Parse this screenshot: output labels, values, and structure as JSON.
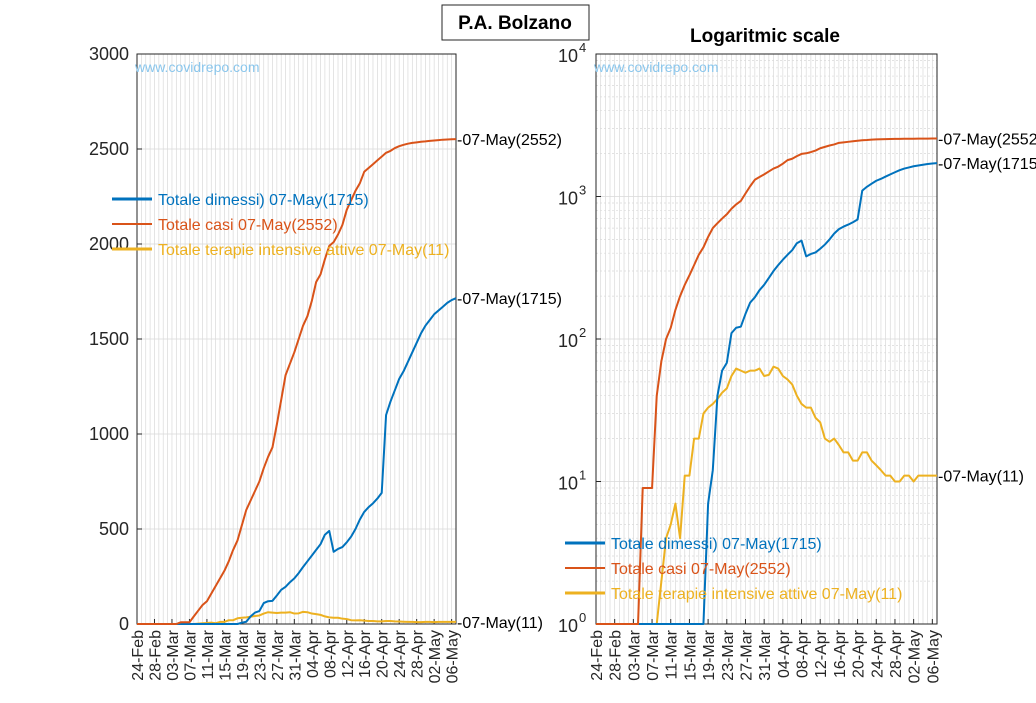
{
  "figure": {
    "main_title": "P.A. Bolzano",
    "watermark": "www.covidrepo.com"
  },
  "colors": {
    "dimessi": "#0072BD",
    "casi": "#D95319",
    "terapie": "#EDB120",
    "grid": "#d9d9d9",
    "axis": "#262626"
  },
  "chart_data": [
    {
      "type": "line",
      "title": "",
      "yscale": "linear",
      "ylim": [
        0,
        3000
      ],
      "yticks": [
        0,
        500,
        1000,
        1500,
        2000,
        2500,
        3000
      ],
      "ytick_labels": [
        "0",
        "500",
        "1000",
        "1500",
        "2000",
        "2500",
        "3000"
      ],
      "x_start": "24-Feb",
      "x_end": "07-May",
      "xtick_labels": [
        "24-Feb",
        "28-Feb",
        "03-Mar",
        "07-Mar",
        "11-Mar",
        "15-Mar",
        "19-Mar",
        "23-Mar",
        "27-Mar",
        "31-Mar",
        "04-Apr",
        "08-Apr",
        "12-Apr",
        "16-Apr",
        "20-Apr",
        "24-Apr",
        "28-Apr",
        "02-May",
        "06-May"
      ],
      "legend": {
        "position": "middle-left",
        "entries": [
          "Totale dimessi) 07-May(1715)",
          "Totale casi 07-May(2552)",
          "Totale terapie intensive attive 07-May(11)"
        ]
      },
      "end_labels": [
        "-07-May(2552)",
        "-07-May(1715)",
        "-07-May(11)"
      ],
      "series": [
        {
          "name": "Totale dimessi) 07-May(1715)",
          "key": "dimessi",
          "points": [
            [
              "24-Feb",
              0
            ],
            [
              "18-Mar",
              0
            ],
            [
              "19-Mar",
              7
            ],
            [
              "20-Mar",
              12
            ],
            [
              "21-Mar",
              40
            ],
            [
              "22-Mar",
              60
            ],
            [
              "23-Mar",
              68
            ],
            [
              "24-Mar",
              110
            ],
            [
              "25-Mar",
              120
            ],
            [
              "26-Mar",
              122
            ],
            [
              "27-Mar",
              150
            ],
            [
              "28-Mar",
              180
            ],
            [
              "29-Mar",
              196
            ],
            [
              "30-Mar",
              220
            ],
            [
              "31-Mar",
              240
            ],
            [
              "01-Apr",
              268
            ],
            [
              "02-Apr",
              300
            ],
            [
              "03-Apr",
              330
            ],
            [
              "04-Apr",
              360
            ],
            [
              "05-Apr",
              390
            ],
            [
              "06-Apr",
              420
            ],
            [
              "07-Apr",
              470
            ],
            [
              "08-Apr",
              490
            ],
            [
              "09-Apr",
              380
            ],
            [
              "10-Apr",
              395
            ],
            [
              "11-Apr",
              405
            ],
            [
              "12-Apr",
              430
            ],
            [
              "13-Apr",
              460
            ],
            [
              "14-Apr",
              500
            ],
            [
              "15-Apr",
              550
            ],
            [
              "16-Apr",
              590
            ],
            [
              "17-Apr",
              615
            ],
            [
              "18-Apr",
              635
            ],
            [
              "19-Apr",
              660
            ],
            [
              "20-Apr",
              690
            ],
            [
              "21-Apr",
              1100
            ],
            [
              "22-Apr",
              1170
            ],
            [
              "23-Apr",
              1230
            ],
            [
              "24-Apr",
              1290
            ],
            [
              "25-Apr",
              1330
            ],
            [
              "26-Apr",
              1380
            ],
            [
              "27-Apr",
              1430
            ],
            [
              "28-Apr",
              1480
            ],
            [
              "29-Apr",
              1530
            ],
            [
              "30-Apr",
              1570
            ],
            [
              "01-May",
              1600
            ],
            [
              "02-May",
              1630
            ],
            [
              "03-May",
              1650
            ],
            [
              "04-May",
              1670
            ],
            [
              "05-May",
              1690
            ],
            [
              "06-May",
              1705
            ],
            [
              "07-May",
              1715
            ]
          ]
        },
        {
          "name": "Totale casi 07-May(2552)",
          "key": "casi",
          "points": [
            [
              "24-Feb",
              0
            ],
            [
              "04-Mar",
              0
            ],
            [
              "05-Mar",
              9
            ],
            [
              "06-Mar",
              9
            ],
            [
              "07-Mar",
              9
            ],
            [
              "08-Mar",
              40
            ],
            [
              "09-Mar",
              70
            ],
            [
              "10-Mar",
              100
            ],
            [
              "11-Mar",
              120
            ],
            [
              "12-Mar",
              160
            ],
            [
              "13-Mar",
              200
            ],
            [
              "14-Mar",
              240
            ],
            [
              "15-Mar",
              280
            ],
            [
              "16-Mar",
              330
            ],
            [
              "17-Mar",
              390
            ],
            [
              "18-Mar",
              440
            ],
            [
              "19-Mar",
              520
            ],
            [
              "20-Mar",
              600
            ],
            [
              "21-Mar",
              650
            ],
            [
              "22-Mar",
              700
            ],
            [
              "23-Mar",
              750
            ],
            [
              "24-Mar",
              820
            ],
            [
              "25-Mar",
              880
            ],
            [
              "26-Mar",
              930
            ],
            [
              "27-Mar",
              1050
            ],
            [
              "28-Mar",
              1180
            ],
            [
              "29-Mar",
              1310
            ],
            [
              "30-Mar",
              1370
            ],
            [
              "31-Mar",
              1430
            ],
            [
              "01-Apr",
              1500
            ],
            [
              "02-Apr",
              1570
            ],
            [
              "03-Apr",
              1620
            ],
            [
              "04-Apr",
              1700
            ],
            [
              "05-Apr",
              1800
            ],
            [
              "06-Apr",
              1840
            ],
            [
              "07-Apr",
              1920
            ],
            [
              "08-Apr",
              1990
            ],
            [
              "09-Apr",
              2010
            ],
            [
              "10-Apr",
              2050
            ],
            [
              "11-Apr",
              2100
            ],
            [
              "12-Apr",
              2180
            ],
            [
              "13-Apr",
              2230
            ],
            [
              "14-Apr",
              2280
            ],
            [
              "15-Apr",
              2320
            ],
            [
              "16-Apr",
              2380
            ],
            [
              "17-Apr",
              2400
            ],
            [
              "18-Apr",
              2420
            ],
            [
              "19-Apr",
              2440
            ],
            [
              "20-Apr",
              2460
            ],
            [
              "21-Apr",
              2480
            ],
            [
              "22-Apr",
              2490
            ],
            [
              "23-Apr",
              2505
            ],
            [
              "24-Apr",
              2515
            ],
            [
              "25-Apr",
              2522
            ],
            [
              "26-Apr",
              2528
            ],
            [
              "27-Apr",
              2532
            ],
            [
              "28-Apr",
              2535
            ],
            [
              "29-Apr",
              2538
            ],
            [
              "30-Apr",
              2540
            ],
            [
              "01-May",
              2543
            ],
            [
              "02-May",
              2545
            ],
            [
              "03-May",
              2547
            ],
            [
              "04-May",
              2549
            ],
            [
              "05-May",
              2550
            ],
            [
              "06-May",
              2551
            ],
            [
              "07-May",
              2552
            ]
          ]
        },
        {
          "name": "Totale terapie intensive attive 07-May(11)",
          "key": "terapie",
          "points": [
            [
              "24-Feb",
              0
            ],
            [
              "08-Mar",
              0
            ],
            [
              "09-Mar",
              2
            ],
            [
              "10-Mar",
              4
            ],
            [
              "11-Mar",
              5
            ],
            [
              "12-Mar",
              7
            ],
            [
              "13-Mar",
              4
            ],
            [
              "14-Mar",
              11
            ],
            [
              "15-Mar",
              11
            ],
            [
              "16-Mar",
              20
            ],
            [
              "17-Mar",
              20
            ],
            [
              "18-Mar",
              30
            ],
            [
              "19-Mar",
              33
            ],
            [
              "20-Mar",
              35
            ],
            [
              "21-Mar",
              38
            ],
            [
              "22-Mar",
              42
            ],
            [
              "23-Mar",
              45
            ],
            [
              "24-Mar",
              55
            ],
            [
              "25-Mar",
              62
            ],
            [
              "26-Mar",
              60
            ],
            [
              "27-Mar",
              58
            ],
            [
              "28-Mar",
              60
            ],
            [
              "29-Mar",
              60
            ],
            [
              "30-Mar",
              62
            ],
            [
              "31-Mar",
              55
            ],
            [
              "01-Apr",
              56
            ],
            [
              "02-Apr",
              64
            ],
            [
              "03-Apr",
              62
            ],
            [
              "04-Apr",
              55
            ],
            [
              "05-Apr",
              52
            ],
            [
              "06-Apr",
              48
            ],
            [
              "07-Apr",
              40
            ],
            [
              "08-Apr",
              35
            ],
            [
              "09-Apr",
              33
            ],
            [
              "10-Apr",
              33
            ],
            [
              "11-Apr",
              28
            ],
            [
              "12-Apr",
              26
            ],
            [
              "13-Apr",
              20
            ],
            [
              "14-Apr",
              19
            ],
            [
              "15-Apr",
              20
            ],
            [
              "16-Apr",
              18
            ],
            [
              "17-Apr",
              16
            ],
            [
              "18-Apr",
              16
            ],
            [
              "19-Apr",
              14
            ],
            [
              "20-Apr",
              14
            ],
            [
              "21-Apr",
              16
            ],
            [
              "22-Apr",
              16
            ],
            [
              "23-Apr",
              14
            ],
            [
              "24-Apr",
              13
            ],
            [
              "25-Apr",
              12
            ],
            [
              "26-Apr",
              11
            ],
            [
              "27-Apr",
              11
            ],
            [
              "28-Apr",
              10
            ],
            [
              "29-Apr",
              10
            ],
            [
              "30-Apr",
              11
            ],
            [
              "01-May",
              11
            ],
            [
              "02-May",
              10
            ],
            [
              "03-May",
              11
            ],
            [
              "04-May",
              11
            ],
            [
              "05-May",
              11
            ],
            [
              "06-May",
              11
            ],
            [
              "07-May",
              11
            ]
          ]
        }
      ]
    },
    {
      "type": "line",
      "title": "Logaritmic scale",
      "yscale": "log",
      "ylim": [
        1,
        10000
      ],
      "ytick_labels": [
        {
          "base": "10",
          "exp": "0"
        },
        {
          "base": "10",
          "exp": "1"
        },
        {
          "base": "10",
          "exp": "2"
        },
        {
          "base": "10",
          "exp": "3"
        },
        {
          "base": "10",
          "exp": "4"
        }
      ],
      "x_start": "24-Feb",
      "x_end": "07-May",
      "xtick_labels": [
        "24-Feb",
        "28-Feb",
        "03-Mar",
        "07-Mar",
        "11-Mar",
        "15-Mar",
        "19-Mar",
        "23-Mar",
        "27-Mar",
        "31-Mar",
        "04-Apr",
        "08-Apr",
        "12-Apr",
        "16-Apr",
        "20-Apr",
        "24-Apr",
        "28-Apr",
        "02-May",
        "06-May"
      ],
      "legend": {
        "position": "bottom-left",
        "entries": [
          "Totale dimessi) 07-May(1715)",
          "Totale casi 07-May(2552)",
          "Totale terapie intensive attive 07-May(11)"
        ]
      },
      "end_labels": [
        "-07-May(2552)",
        "-07-May(1715)",
        "-07-May(11)"
      ],
      "series_ref": "same data as the linear chart, plotted on a log y-axis"
    }
  ]
}
